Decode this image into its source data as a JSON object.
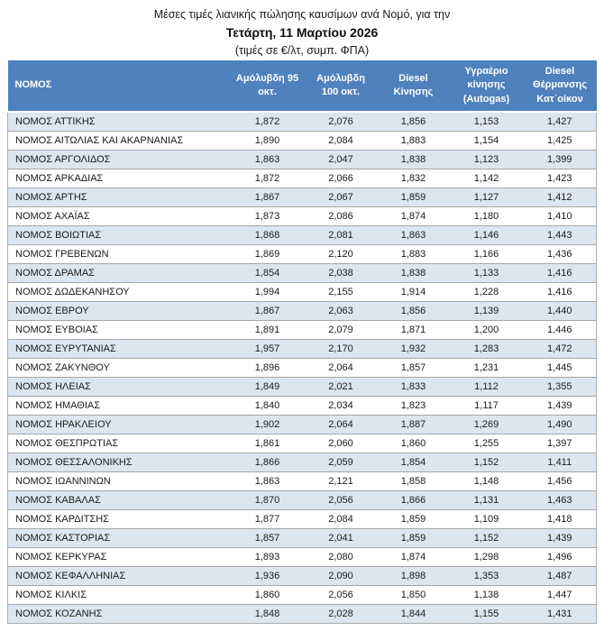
{
  "title": {
    "line1": "Μέσες τιμές λιανικής πώλησης καυσίμων ανά Νομό, για την",
    "line2": "Τετάρτη, 11 Μαρτίου 2026",
    "line3": "(τιμές σε €/λτ, συμπ. ΦΠΑ)"
  },
  "colors": {
    "header_bg": "#4F81BD",
    "header_text": "#FFFFFF",
    "band_row_bg": "#DCE6F1",
    "row_separator": "#A6A6A6"
  },
  "table": {
    "columns": [
      {
        "label": "ΝΟΜΟΣ"
      },
      {
        "label": "Αμόλυβδη 95 οκτ."
      },
      {
        "label": "Αμόλυβδη 100 οκτ."
      },
      {
        "label": "Diesel Κίνησης"
      },
      {
        "label": "Υγραέριο κίνησης (Autogas)"
      },
      {
        "label": "Diesel Θέρμανσης Κατ΄οίκον"
      }
    ],
    "rows": [
      {
        "name": "ΝΟΜΟΣ ΑΤΤΙΚΗΣ",
        "values": [
          "1,872",
          "2,076",
          "1,856",
          "1,153",
          "1,427"
        ]
      },
      {
        "name": "ΝΟΜΟΣ ΑΙΤΩΛΙΑΣ ΚΑΙ ΑΚΑΡΝΑΝΙΑΣ",
        "values": [
          "1,890",
          "2,084",
          "1,883",
          "1,154",
          "1,425"
        ]
      },
      {
        "name": "ΝΟΜΟΣ ΑΡΓΟΛΙΔΟΣ",
        "values": [
          "1,863",
          "2,047",
          "1,838",
          "1,123",
          "1,399"
        ]
      },
      {
        "name": "ΝΟΜΟΣ ΑΡΚΑΔΙΑΣ",
        "values": [
          "1,872",
          "2,066",
          "1,832",
          "1,142",
          "1,423"
        ]
      },
      {
        "name": "ΝΟΜΟΣ ΑΡΤΗΣ",
        "values": [
          "1,867",
          "2,067",
          "1,859",
          "1,127",
          "1,412"
        ]
      },
      {
        "name": "ΝΟΜΟΣ ΑΧΑΪΑΣ",
        "values": [
          "1,873",
          "2,086",
          "1,874",
          "1,180",
          "1,410"
        ]
      },
      {
        "name": "ΝΟΜΟΣ ΒΟΙΩΤΙΑΣ",
        "values": [
          "1,868",
          "2,081",
          "1,863",
          "1,146",
          "1,443"
        ]
      },
      {
        "name": "ΝΟΜΟΣ ΓΡΕΒΕΝΩΝ",
        "values": [
          "1,869",
          "2,120",
          "1,883",
          "1,166",
          "1,436"
        ]
      },
      {
        "name": "ΝΟΜΟΣ ΔΡΑΜΑΣ",
        "values": [
          "1,854",
          "2,038",
          "1,838",
          "1,133",
          "1,416"
        ]
      },
      {
        "name": "ΝΟΜΟΣ ΔΩΔΕΚΑΝΗΣΟΥ",
        "values": [
          "1,994",
          "2,155",
          "1,914",
          "1,228",
          "1,416"
        ]
      },
      {
        "name": "ΝΟΜΟΣ ΕΒΡΟΥ",
        "values": [
          "1,867",
          "2,063",
          "1,856",
          "1,139",
          "1,440"
        ]
      },
      {
        "name": "ΝΟΜΟΣ ΕΥΒΟΙΑΣ",
        "values": [
          "1,891",
          "2,079",
          "1,871",
          "1,200",
          "1,446"
        ]
      },
      {
        "name": "ΝΟΜΟΣ ΕΥΡΥΤΑΝΙΑΣ",
        "values": [
          "1,957",
          "2,170",
          "1,932",
          "1,283",
          "1,472"
        ]
      },
      {
        "name": "ΝΟΜΟΣ ΖΑΚΥΝΘΟΥ",
        "values": [
          "1,896",
          "2,064",
          "1,857",
          "1,231",
          "1,445"
        ]
      },
      {
        "name": "ΝΟΜΟΣ ΗΛΕΙΑΣ",
        "values": [
          "1,849",
          "2,021",
          "1,833",
          "1,112",
          "1,355"
        ]
      },
      {
        "name": "ΝΟΜΟΣ ΗΜΑΘΙΑΣ",
        "values": [
          "1,840",
          "2,034",
          "1,823",
          "1,117",
          "1,439"
        ]
      },
      {
        "name": "ΝΟΜΟΣ ΗΡΑΚΛΕΙΟΥ",
        "values": [
          "1,902",
          "2,064",
          "1,887",
          "1,269",
          "1,490"
        ]
      },
      {
        "name": "ΝΟΜΟΣ ΘΕΣΠΡΩΤΙΑΣ",
        "values": [
          "1,861",
          "2,060",
          "1,860",
          "1,255",
          "1,397"
        ]
      },
      {
        "name": "ΝΟΜΟΣ ΘΕΣΣΑΛΟΝΙΚΗΣ",
        "values": [
          "1,866",
          "2,059",
          "1,854",
          "1,152",
          "1,411"
        ]
      },
      {
        "name": "ΝΟΜΟΣ ΙΩΑΝΝΙΝΩΝ",
        "values": [
          "1,863",
          "2,121",
          "1,858",
          "1,148",
          "1,456"
        ]
      },
      {
        "name": "ΝΟΜΟΣ ΚΑΒΑΛΑΣ",
        "values": [
          "1,870",
          "2,056",
          "1,866",
          "1,131",
          "1,463"
        ]
      },
      {
        "name": "ΝΟΜΟΣ ΚΑΡΔΙΤΣΗΣ",
        "values": [
          "1,877",
          "2,084",
          "1,859",
          "1,109",
          "1,418"
        ]
      },
      {
        "name": "ΝΟΜΟΣ ΚΑΣΤΟΡΙΑΣ",
        "values": [
          "1,857",
          "2,041",
          "1,859",
          "1,152",
          "1,439"
        ]
      },
      {
        "name": "ΝΟΜΟΣ ΚΕΡΚΥΡΑΣ",
        "values": [
          "1,893",
          "2,080",
          "1,874",
          "1,298",
          "1,496"
        ]
      },
      {
        "name": "ΝΟΜΟΣ ΚΕΦΑΛΛΗΝΙΑΣ",
        "values": [
          "1,936",
          "2,090",
          "1,898",
          "1,353",
          "1,487"
        ]
      },
      {
        "name": "ΝΟΜΟΣ ΚΙΛΚΙΣ",
        "values": [
          "1,860",
          "2,056",
          "1,850",
          "1,138",
          "1,447"
        ]
      },
      {
        "name": "ΝΟΜΟΣ ΚΟΖΑΝΗΣ",
        "values": [
          "1,848",
          "2,028",
          "1,844",
          "1,155",
          "1,431"
        ]
      }
    ]
  }
}
